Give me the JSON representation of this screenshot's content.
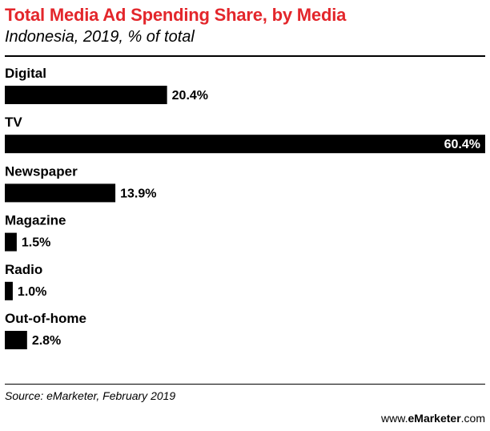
{
  "header": {
    "title": "Total Media Ad Spending Share, by Media",
    "subtitle": "Indonesia, 2019, % of total"
  },
  "chart_data": {
    "type": "bar",
    "orientation": "horizontal",
    "title": "Total Media Ad Spending Share, by Media",
    "subtitle": "Indonesia, 2019, % of total",
    "categories": [
      "Digital",
      "TV",
      "Newspaper",
      "Magazine",
      "Radio",
      "Out-of-home"
    ],
    "values": [
      20.4,
      60.4,
      13.9,
      1.5,
      1.0,
      2.8
    ],
    "value_labels": [
      "20.4%",
      "60.4%",
      "13.9%",
      "1.5%",
      "1.0%",
      "2.8%"
    ],
    "xlim": [
      0,
      60.4
    ],
    "grid": false,
    "legend": "none",
    "bar_color": "#000000",
    "title_color": "#e3262b"
  },
  "footer": {
    "source": "Source: eMarketer, February 2019",
    "brand_prefix": "www.",
    "brand_name": "eMarketer",
    "brand_suffix": ".com"
  }
}
